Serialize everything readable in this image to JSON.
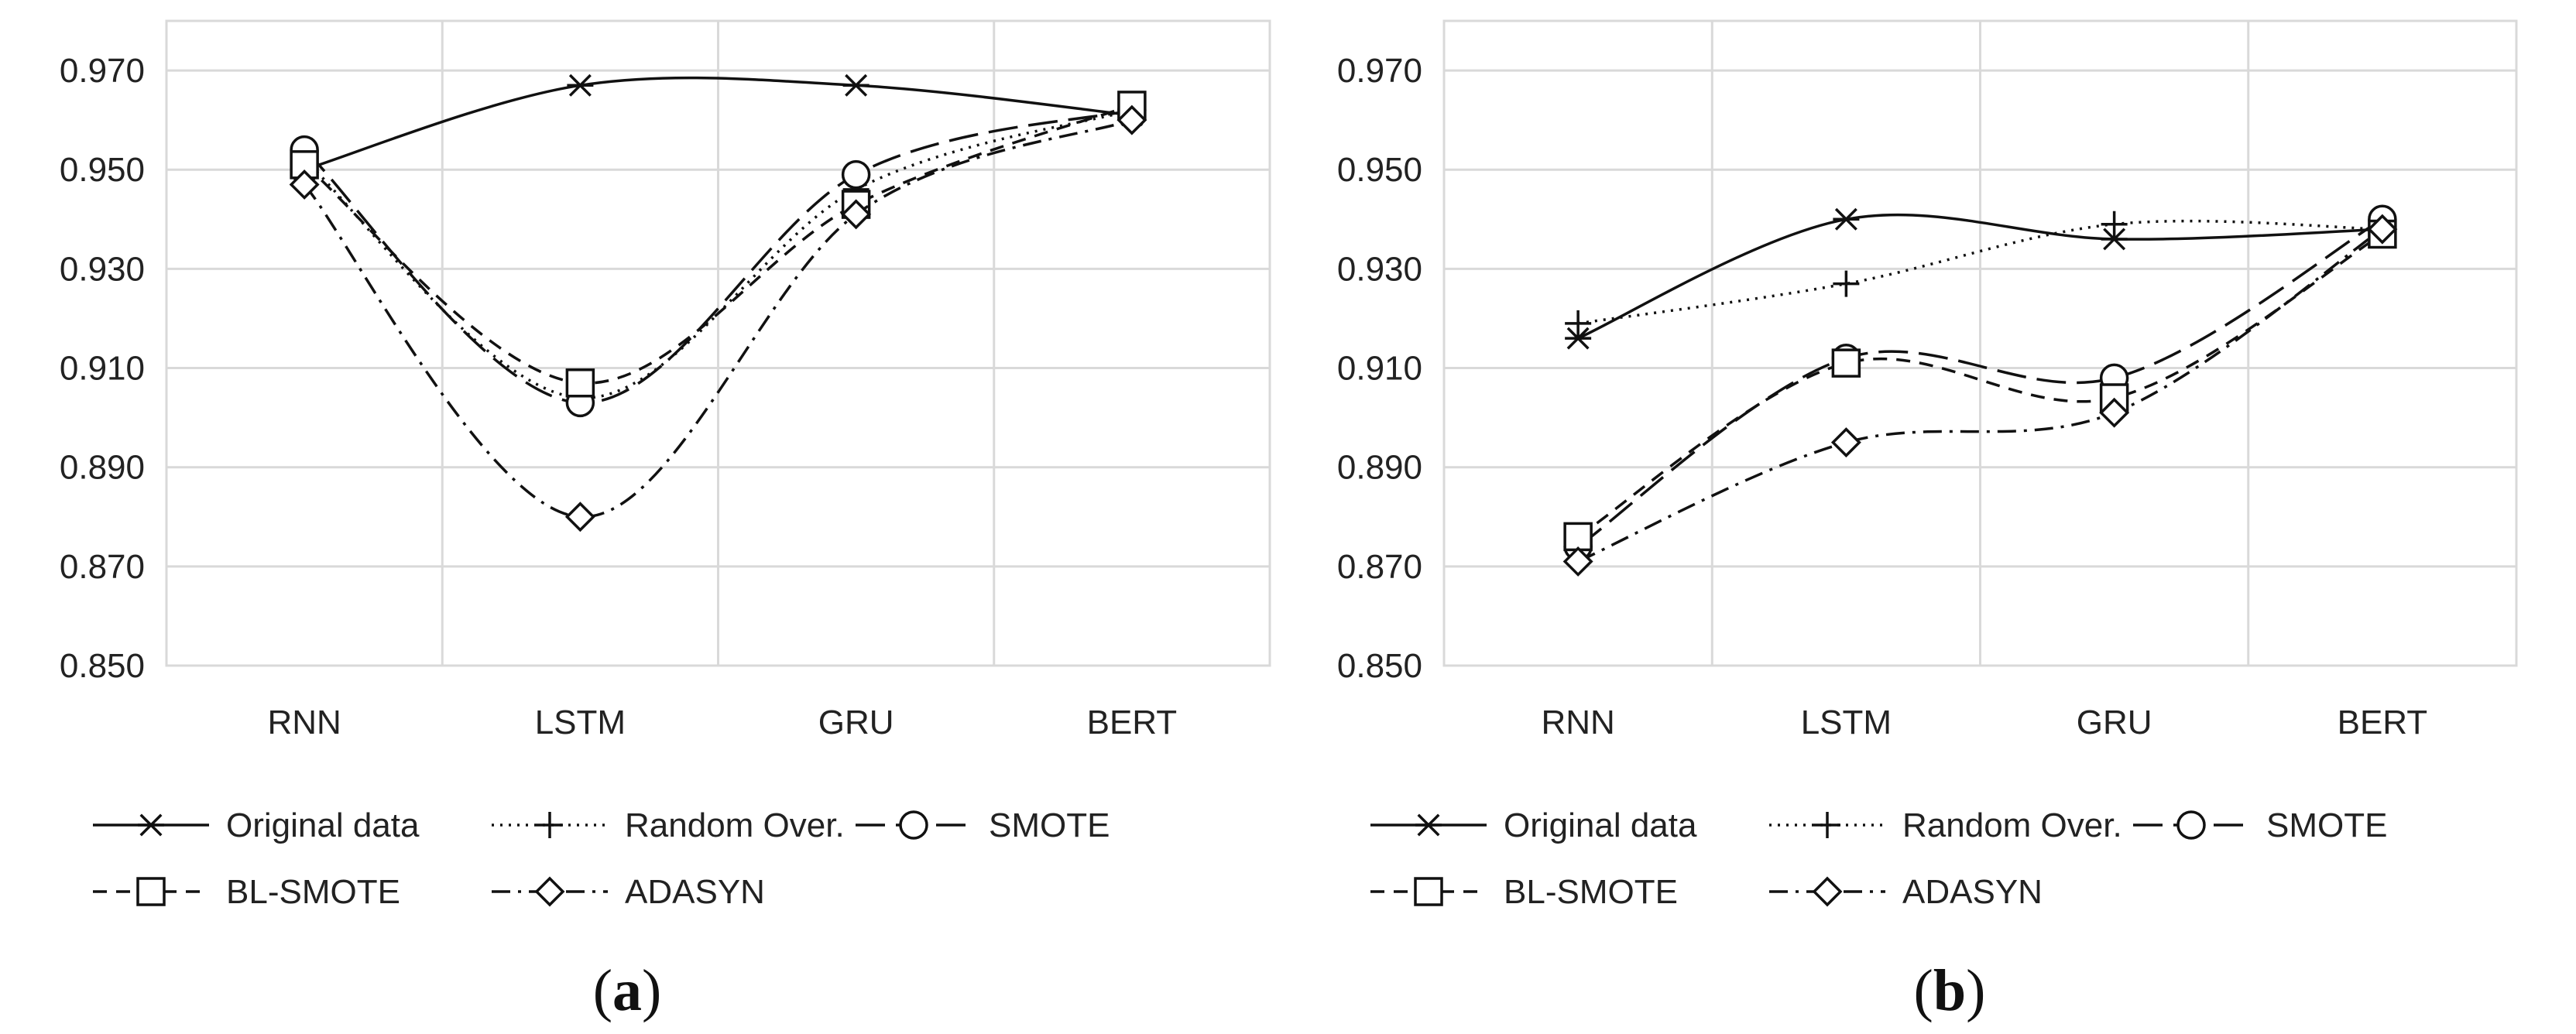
{
  "chart_data": [
    {
      "type": "line",
      "panel_label": "a",
      "categories": [
        "RNN",
        "LSTM",
        "GRU",
        "BERT"
      ],
      "ylim": [
        0.85,
        0.98
      ],
      "yticks": [
        "0.850",
        "0.870",
        "0.890",
        "0.910",
        "0.930",
        "0.950",
        "0.970"
      ],
      "ytick_values": [
        0.85,
        0.87,
        0.89,
        0.91,
        0.93,
        0.95,
        0.97
      ],
      "grid": true,
      "legend_position": "bottom",
      "series": [
        {
          "name": "Original data",
          "marker": "asterisk",
          "dash": "solid",
          "values": [
            0.95,
            0.967,
            0.967,
            0.961
          ]
        },
        {
          "name": "Random Over.",
          "marker": "plus",
          "dash": "dotted",
          "values": [
            0.952,
            0.904,
            0.946,
            0.962
          ]
        },
        {
          "name": "SMOTE",
          "marker": "circle",
          "dash": "longdash",
          "values": [
            0.954,
            0.903,
            0.949,
            0.962
          ]
        },
        {
          "name": "BL-SMOTE",
          "marker": "square",
          "dash": "dashed",
          "values": [
            0.951,
            0.907,
            0.943,
            0.963
          ]
        },
        {
          "name": "ADASYN",
          "marker": "diamond",
          "dash": "dashdot",
          "values": [
            0.947,
            0.88,
            0.941,
            0.96
          ]
        }
      ]
    },
    {
      "type": "line",
      "panel_label": "b",
      "categories": [
        "RNN",
        "LSTM",
        "GRU",
        "BERT"
      ],
      "ylim": [
        0.85,
        0.98
      ],
      "yticks": [
        "0.850",
        "0.870",
        "0.890",
        "0.910",
        "0.930",
        "0.950",
        "0.970"
      ],
      "ytick_values": [
        0.85,
        0.87,
        0.89,
        0.91,
        0.93,
        0.95,
        0.97
      ],
      "grid": true,
      "legend_position": "bottom",
      "series": [
        {
          "name": "Original data",
          "marker": "asterisk",
          "dash": "solid",
          "values": [
            0.916,
            0.94,
            0.936,
            0.938
          ]
        },
        {
          "name": "Random Over.",
          "marker": "plus",
          "dash": "dotted",
          "values": [
            0.919,
            0.927,
            0.939,
            0.938
          ]
        },
        {
          "name": "SMOTE",
          "marker": "circle",
          "dash": "longdash",
          "values": [
            0.874,
            0.912,
            0.908,
            0.94
          ]
        },
        {
          "name": "BL-SMOTE",
          "marker": "square",
          "dash": "dashed",
          "values": [
            0.876,
            0.911,
            0.904,
            0.937
          ]
        },
        {
          "name": "ADASYN",
          "marker": "diamond",
          "dash": "dashdot",
          "values": [
            0.871,
            0.895,
            0.901,
            0.938
          ]
        }
      ]
    }
  ]
}
